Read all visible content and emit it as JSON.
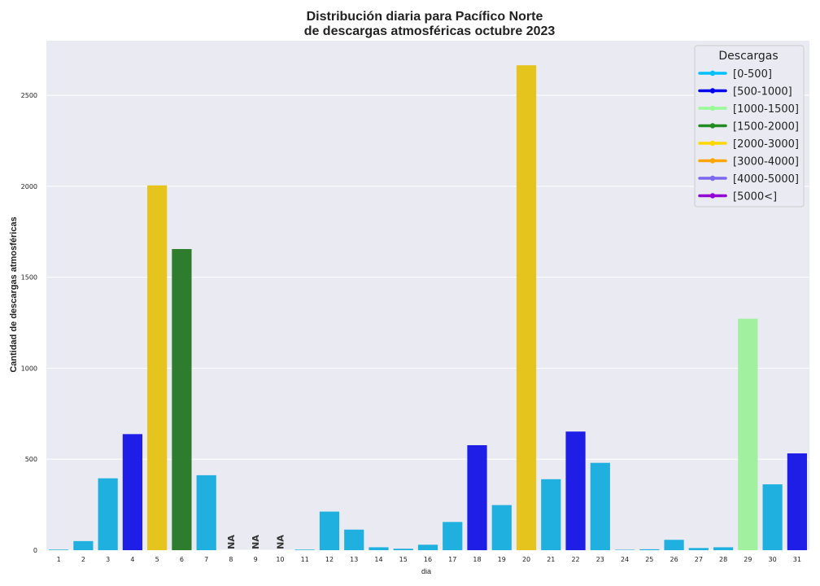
{
  "chart_data": {
    "type": "bar",
    "title_line1": "Distribución diaria para Pacífico Norte",
    "title_line2": "de descargas atmosféricas octubre 2023",
    "xlabel": "dia",
    "ylabel": "Cantidad de descargas atmosféricas",
    "ylim": [
      0,
      2800
    ],
    "yticks": [
      0,
      500,
      1000,
      1500,
      2000,
      2500
    ],
    "grid": true,
    "legend_position": "top-right",
    "legend": {
      "title": "Descargas",
      "entries": [
        {
          "label": "[0-500]",
          "color": "#00BFFF"
        },
        {
          "label": "[500-1000]",
          "color": "#0000EE"
        },
        {
          "label": "[1000-1500]",
          "color": "#98FB98"
        },
        {
          "label": "[1500-2000]",
          "color": "#228B22"
        },
        {
          "label": "[2000-3000]",
          "color": "#FFD700"
        },
        {
          "label": "[3000-4000]",
          "color": "#FFA500"
        },
        {
          "label": "[4000-5000]",
          "color": "#7B68EE"
        },
        {
          "label": "[5000<]",
          "color": "#9400D3"
        }
      ]
    },
    "categories": [
      "1",
      "2",
      "3",
      "4",
      "5",
      "6",
      "7",
      "8",
      "9",
      "10",
      "11",
      "12",
      "13",
      "14",
      "15",
      "16",
      "17",
      "18",
      "19",
      "20",
      "21",
      "22",
      "23",
      "24",
      "25",
      "26",
      "27",
      "28",
      "29",
      "30",
      "31"
    ],
    "values": [
      3,
      50,
      395,
      638,
      2005,
      1655,
      412,
      null,
      null,
      null,
      3,
      212,
      113,
      16,
      8,
      30,
      155,
      577,
      248,
      2665,
      390,
      652,
      480,
      2,
      5,
      57,
      12,
      16,
      1272,
      362,
      532
    ],
    "bar_colors": [
      "#1FB0E0",
      "#1FB0E0",
      "#1FB0E0",
      "#1E1EE6",
      "#E6C41E",
      "#2E7D2E",
      "#1FB0E0",
      "",
      "",
      "",
      "#1FB0E0",
      "#1FB0E0",
      "#1FB0E0",
      "#1FB0E0",
      "#1FB0E0",
      "#1FB0E0",
      "#1FB0E0",
      "#1E1EE6",
      "#1FB0E0",
      "#E6C41E",
      "#1FB0E0",
      "#1E1EE6",
      "#1FB0E0",
      "#1FB0E0",
      "#1FB0E0",
      "#1FB0E0",
      "#1FB0E0",
      "#1FB0E0",
      "#A0F0A0",
      "#1FB0E0",
      "#1E1EE6"
    ],
    "missing_label": "NA"
  }
}
